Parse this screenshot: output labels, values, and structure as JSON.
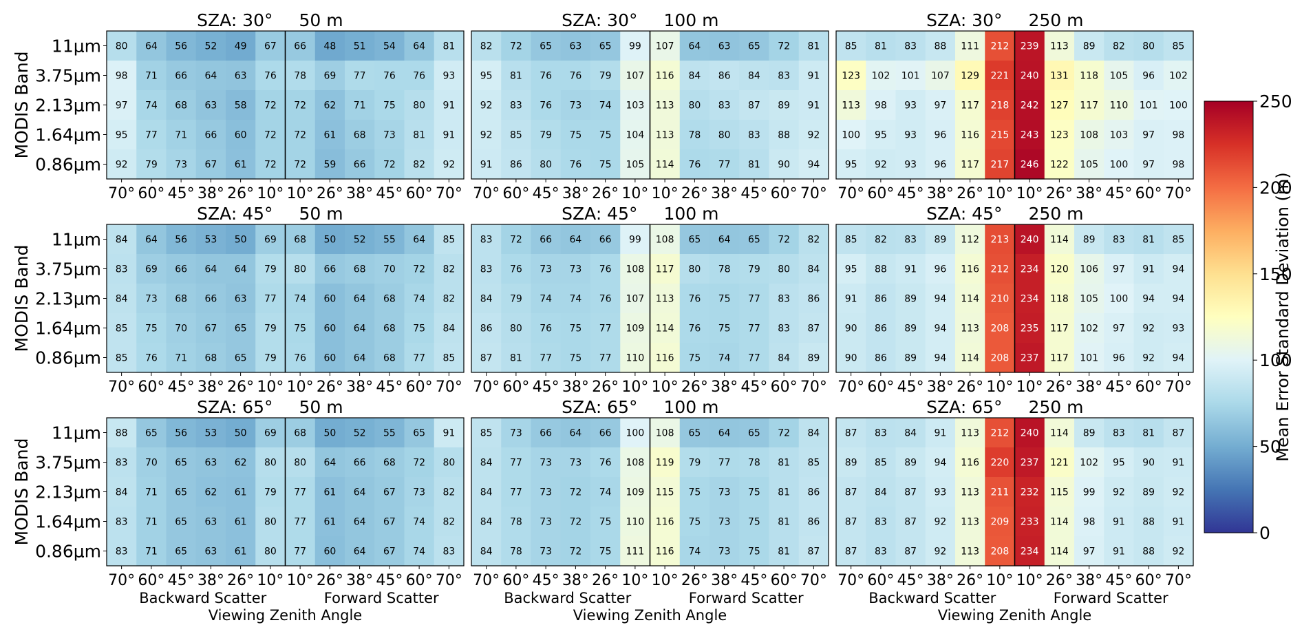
{
  "figure": {
    "ylabel": "MODIS Band",
    "xlabel": "Viewing Zenith Angle",
    "backward_label": "Backward Scatter",
    "forward_label": "Forward Scatter",
    "colorbar": {
      "label": "Mean Error Standard Deviation (m)",
      "range": [
        0,
        250
      ],
      "ticks": [
        "0",
        "50",
        "100",
        "150",
        "200",
        "250"
      ],
      "colormap": "RdYlBu_r",
      "stops": [
        "#313695",
        "#4575b4",
        "#74add1",
        "#abd9e9",
        "#e0f3f8",
        "#ffffbf",
        "#fee090",
        "#fdae61",
        "#f46d43",
        "#d73027",
        "#a50026"
      ]
    }
  },
  "chart_data": [
    {
      "type": "heatmap",
      "title_sza": "SZA: 30°",
      "title_res": "50 m",
      "rows": [
        "11μm",
        "3.75μm",
        "2.13μm",
        "1.64μm",
        "0.86μm"
      ],
      "columns": [
        "70°",
        "60°",
        "45°",
        "38°",
        "26°",
        "10°",
        "10°",
        "26°",
        "38°",
        "45°",
        "60°",
        "70°"
      ],
      "values": [
        [
          80,
          64,
          56,
          52,
          49,
          67,
          66,
          48,
          51,
          54,
          64,
          81
        ],
        [
          98,
          71,
          66,
          64,
          63,
          76,
          78,
          69,
          77,
          76,
          76,
          93
        ],
        [
          97,
          74,
          68,
          63,
          58,
          72,
          72,
          62,
          71,
          75,
          80,
          91
        ],
        [
          95,
          77,
          71,
          66,
          60,
          72,
          72,
          61,
          68,
          73,
          81,
          91
        ],
        [
          92,
          79,
          73,
          67,
          61,
          72,
          72,
          59,
          66,
          72,
          82,
          92
        ]
      ]
    },
    {
      "type": "heatmap",
      "title_sza": "SZA: 30°",
      "title_res": "100 m",
      "rows": [
        "11μm",
        "3.75μm",
        "2.13μm",
        "1.64μm",
        "0.86μm"
      ],
      "columns": [
        "70°",
        "60°",
        "45°",
        "38°",
        "26°",
        "10°",
        "10°",
        "26°",
        "38°",
        "45°",
        "60°",
        "70°"
      ],
      "values": [
        [
          82,
          72,
          65,
          63,
          65,
          99,
          107,
          64,
          63,
          65,
          72,
          81
        ],
        [
          95,
          81,
          76,
          76,
          79,
          107,
          116,
          84,
          86,
          84,
          83,
          91
        ],
        [
          92,
          83,
          76,
          73,
          74,
          103,
          113,
          80,
          83,
          87,
          89,
          91
        ],
        [
          92,
          85,
          79,
          75,
          75,
          104,
          113,
          78,
          80,
          83,
          88,
          92
        ],
        [
          91,
          86,
          80,
          76,
          75,
          105,
          114,
          76,
          77,
          81,
          90,
          94
        ]
      ]
    },
    {
      "type": "heatmap",
      "title_sza": "SZA: 30°",
      "title_res": "250 m",
      "rows": [
        "11μm",
        "3.75μm",
        "2.13μm",
        "1.64μm",
        "0.86μm"
      ],
      "columns": [
        "70°",
        "60°",
        "45°",
        "38°",
        "26°",
        "10°",
        "10°",
        "26°",
        "38°",
        "45°",
        "60°",
        "70°"
      ],
      "values": [
        [
          85,
          81,
          83,
          88,
          111,
          212,
          239,
          113,
          89,
          82,
          80,
          85
        ],
        [
          123,
          102,
          101,
          107,
          129,
          221,
          240,
          131,
          118,
          105,
          96,
          102
        ],
        [
          113,
          98,
          93,
          97,
          117,
          218,
          242,
          127,
          117,
          110,
          101,
          100
        ],
        [
          100,
          95,
          93,
          96,
          116,
          215,
          243,
          123,
          108,
          103,
          97,
          98
        ],
        [
          95,
          92,
          93,
          96,
          117,
          217,
          246,
          122,
          105,
          100,
          97,
          98
        ]
      ]
    },
    {
      "type": "heatmap",
      "title_sza": "SZA: 45°",
      "title_res": "50 m",
      "rows": [
        "11μm",
        "3.75μm",
        "2.13μm",
        "1.64μm",
        "0.86μm"
      ],
      "columns": [
        "70°",
        "60°",
        "45°",
        "38°",
        "26°",
        "10°",
        "10°",
        "26°",
        "38°",
        "45°",
        "60°",
        "70°"
      ],
      "values": [
        [
          84,
          64,
          56,
          53,
          50,
          69,
          68,
          50,
          52,
          55,
          64,
          85
        ],
        [
          83,
          69,
          66,
          64,
          64,
          79,
          80,
          66,
          68,
          70,
          72,
          82
        ],
        [
          84,
          73,
          68,
          66,
          63,
          77,
          74,
          60,
          64,
          68,
          74,
          82
        ],
        [
          85,
          75,
          70,
          67,
          65,
          79,
          75,
          60,
          64,
          68,
          75,
          84
        ],
        [
          85,
          76,
          71,
          68,
          65,
          79,
          76,
          60,
          64,
          68,
          77,
          85
        ]
      ]
    },
    {
      "type": "heatmap",
      "title_sza": "SZA: 45°",
      "title_res": "100 m",
      "rows": [
        "11μm",
        "3.75μm",
        "2.13μm",
        "1.64μm",
        "0.86μm"
      ],
      "columns": [
        "70°",
        "60°",
        "45°",
        "38°",
        "26°",
        "10°",
        "10°",
        "26°",
        "38°",
        "45°",
        "60°",
        "70°"
      ],
      "values": [
        [
          83,
          72,
          66,
          64,
          66,
          99,
          108,
          65,
          64,
          65,
          72,
          82
        ],
        [
          83,
          76,
          73,
          73,
          76,
          108,
          117,
          80,
          78,
          79,
          80,
          84
        ],
        [
          84,
          79,
          74,
          74,
          76,
          107,
          113,
          76,
          75,
          77,
          83,
          86
        ],
        [
          86,
          80,
          76,
          75,
          77,
          109,
          114,
          76,
          75,
          77,
          83,
          87
        ],
        [
          87,
          81,
          77,
          75,
          77,
          110,
          116,
          75,
          74,
          77,
          84,
          89
        ]
      ]
    },
    {
      "type": "heatmap",
      "title_sza": "SZA: 45°",
      "title_res": "250 m",
      "rows": [
        "11μm",
        "3.75μm",
        "2.13μm",
        "1.64μm",
        "0.86μm"
      ],
      "columns": [
        "70°",
        "60°",
        "45°",
        "38°",
        "26°",
        "10°",
        "10°",
        "26°",
        "38°",
        "45°",
        "60°",
        "70°"
      ],
      "values": [
        [
          85,
          82,
          83,
          89,
          112,
          213,
          240,
          114,
          89,
          83,
          81,
          85
        ],
        [
          95,
          88,
          91,
          96,
          116,
          212,
          234,
          120,
          106,
          97,
          91,
          94
        ],
        [
          91,
          86,
          89,
          94,
          114,
          210,
          234,
          118,
          105,
          100,
          94,
          94
        ],
        [
          90,
          86,
          89,
          94,
          113,
          208,
          235,
          117,
          102,
          97,
          92,
          93
        ],
        [
          90,
          86,
          89,
          94,
          114,
          208,
          237,
          117,
          101,
          96,
          92,
          94
        ]
      ]
    },
    {
      "type": "heatmap",
      "title_sza": "SZA: 65°",
      "title_res": "50 m",
      "rows": [
        "11μm",
        "3.75μm",
        "2.13μm",
        "1.64μm",
        "0.86μm"
      ],
      "columns": [
        "70°",
        "60°",
        "45°",
        "38°",
        "26°",
        "10°",
        "10°",
        "26°",
        "38°",
        "45°",
        "60°",
        "70°"
      ],
      "values": [
        [
          88,
          65,
          56,
          53,
          50,
          69,
          68,
          50,
          52,
          55,
          65,
          91
        ],
        [
          83,
          70,
          65,
          63,
          62,
          80,
          80,
          64,
          66,
          68,
          72,
          80
        ],
        [
          84,
          71,
          65,
          62,
          61,
          79,
          77,
          61,
          64,
          67,
          73,
          82
        ],
        [
          83,
          71,
          65,
          63,
          61,
          80,
          77,
          61,
          64,
          67,
          74,
          82
        ],
        [
          83,
          71,
          65,
          63,
          61,
          80,
          77,
          60,
          64,
          67,
          74,
          83
        ]
      ]
    },
    {
      "type": "heatmap",
      "title_sza": "SZA: 65°",
      "title_res": "100 m",
      "rows": [
        "11μm",
        "3.75μm",
        "2.13μm",
        "1.64μm",
        "0.86μm"
      ],
      "columns": [
        "70°",
        "60°",
        "45°",
        "38°",
        "26°",
        "10°",
        "10°",
        "26°",
        "38°",
        "45°",
        "60°",
        "70°"
      ],
      "values": [
        [
          85,
          73,
          66,
          64,
          66,
          100,
          108,
          65,
          64,
          65,
          72,
          84
        ],
        [
          84,
          77,
          73,
          73,
          76,
          108,
          119,
          79,
          77,
          78,
          81,
          85
        ],
        [
          84,
          77,
          73,
          72,
          74,
          109,
          115,
          75,
          73,
          75,
          81,
          86
        ],
        [
          84,
          78,
          73,
          72,
          75,
          110,
          116,
          75,
          73,
          75,
          81,
          86
        ],
        [
          84,
          78,
          73,
          72,
          75,
          111,
          116,
          74,
          73,
          75,
          81,
          87
        ]
      ]
    },
    {
      "type": "heatmap",
      "title_sza": "SZA: 65°",
      "title_res": "250 m",
      "rows": [
        "11μm",
        "3.75μm",
        "2.13μm",
        "1.64μm",
        "0.86μm"
      ],
      "columns": [
        "70°",
        "60°",
        "45°",
        "38°",
        "26°",
        "10°",
        "10°",
        "26°",
        "38°",
        "45°",
        "60°",
        "70°"
      ],
      "values": [
        [
          87,
          83,
          84,
          91,
          113,
          212,
          240,
          114,
          89,
          83,
          81,
          87
        ],
        [
          89,
          85,
          89,
          94,
          116,
          220,
          237,
          121,
          102,
          95,
          90,
          91
        ],
        [
          87,
          84,
          87,
          93,
          113,
          211,
          232,
          115,
          99,
          92,
          89,
          92
        ],
        [
          87,
          83,
          87,
          92,
          113,
          209,
          233,
          114,
          98,
          91,
          88,
          91
        ],
        [
          87,
          83,
          87,
          92,
          113,
          208,
          234,
          114,
          97,
          91,
          88,
          92
        ]
      ]
    }
  ]
}
